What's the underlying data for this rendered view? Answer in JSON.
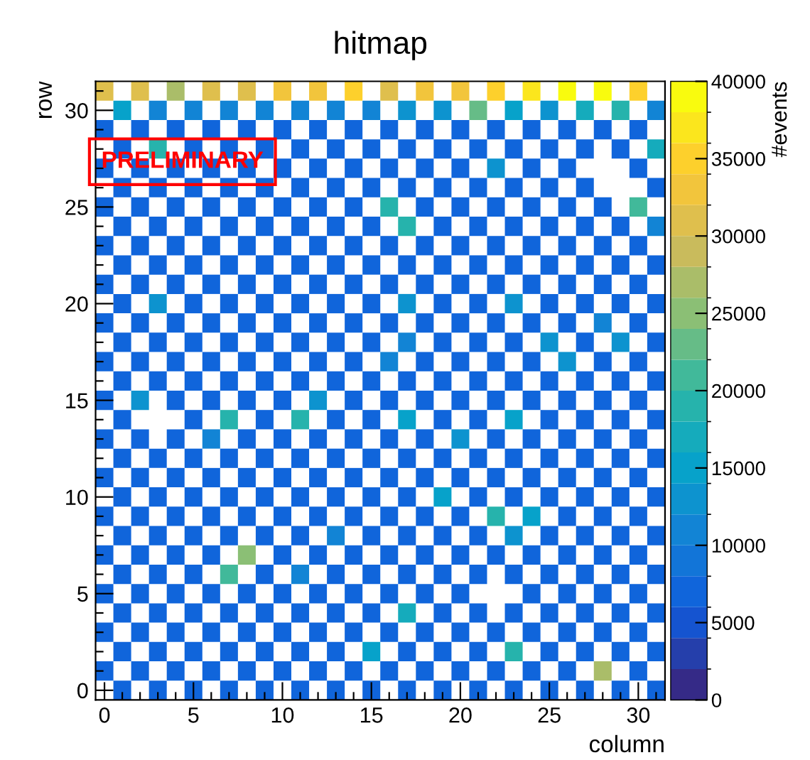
{
  "chart_data": {
    "type": "heatmap",
    "title": "hitmap",
    "xlabel": "column",
    "ylabel": "row",
    "clabel": "#events",
    "annotations": [
      "PRELIMINARY"
    ],
    "categories": [
      "0",
      null,
      null,
      null,
      null,
      "5",
      null,
      null,
      null,
      null,
      "10",
      null,
      null,
      null,
      null,
      "15",
      null,
      null,
      null,
      null,
      "20",
      null,
      null,
      null,
      null,
      "25",
      null,
      null,
      null,
      null,
      "30",
      null
    ],
    "y_categories": [
      null,
      "30",
      null,
      null,
      null,
      null,
      "25",
      null,
      null,
      null,
      null,
      "20",
      null,
      null,
      null,
      null,
      "15",
      null,
      null,
      null,
      null,
      "10",
      null,
      null,
      null,
      null,
      "5",
      null,
      null,
      null,
      null,
      "0"
    ],
    "clim": [
      0,
      40000
    ],
    "cticks": [
      0,
      5000,
      10000,
      15000,
      20000,
      25000,
      30000,
      35000,
      40000
    ],
    "cells": [
      [
        31000,
        null,
        31000,
        null,
        27000,
        null,
        31000,
        null,
        31000,
        null,
        33000,
        null,
        33000,
        null,
        35000,
        null,
        31000,
        null,
        33000,
        null,
        33000,
        null,
        35000,
        null,
        37000,
        null,
        39000,
        null,
        39000,
        null,
        35000,
        null
      ],
      [
        null,
        15000,
        null,
        11000,
        null,
        11000,
        null,
        11000,
        null,
        11000,
        null,
        11000,
        null,
        11000,
        null,
        11000,
        null,
        13000,
        null,
        13000,
        null,
        23000,
        null,
        15000,
        null,
        13000,
        null,
        17000,
        null,
        19000,
        null,
        11000
      ],
      [
        7000,
        null,
        7000,
        null,
        7000,
        null,
        7000,
        null,
        7000,
        null,
        7000,
        null,
        7000,
        null,
        7000,
        null,
        7000,
        null,
        7000,
        null,
        7000,
        null,
        7000,
        null,
        7000,
        null,
        7000,
        null,
        7000,
        null,
        7000,
        null
      ],
      [
        null,
        7000,
        null,
        19000,
        null,
        7000,
        null,
        7000,
        null,
        7000,
        null,
        7000,
        null,
        7000,
        null,
        7000,
        null,
        7000,
        null,
        7000,
        null,
        7000,
        null,
        7000,
        null,
        7000,
        null,
        7000,
        null,
        7000,
        null,
        17000
      ],
      [
        7000,
        null,
        7000,
        null,
        7000,
        null,
        7000,
        null,
        7000,
        null,
        7000,
        null,
        7000,
        null,
        7000,
        null,
        7000,
        null,
        7000,
        null,
        7000,
        null,
        13000,
        null,
        7000,
        null,
        7000,
        null,
        null,
        null,
        7000,
        null
      ],
      [
        null,
        7000,
        null,
        7000,
        null,
        7000,
        null,
        7000,
        null,
        7000,
        null,
        7000,
        null,
        7000,
        null,
        7000,
        null,
        7000,
        null,
        7000,
        null,
        7000,
        null,
        7000,
        null,
        7000,
        null,
        7000,
        null,
        null,
        null,
        7000
      ],
      [
        7000,
        null,
        7000,
        null,
        7000,
        null,
        7000,
        null,
        7000,
        null,
        7000,
        null,
        7000,
        null,
        7000,
        null,
        19000,
        null,
        7000,
        null,
        7000,
        null,
        7000,
        null,
        7000,
        null,
        7000,
        null,
        7000,
        null,
        21000,
        null
      ],
      [
        null,
        7000,
        null,
        7000,
        null,
        7000,
        null,
        7000,
        null,
        7000,
        null,
        7000,
        null,
        7000,
        null,
        7000,
        null,
        19000,
        null,
        7000,
        null,
        7000,
        null,
        7000,
        null,
        7000,
        null,
        7000,
        null,
        7000,
        null,
        11000
      ],
      [
        7000,
        null,
        7000,
        null,
        7000,
        null,
        7000,
        null,
        7000,
        null,
        7000,
        null,
        7000,
        null,
        7000,
        null,
        7000,
        null,
        7000,
        null,
        7000,
        null,
        7000,
        null,
        7000,
        null,
        7000,
        null,
        7000,
        null,
        7000,
        null
      ],
      [
        null,
        7000,
        null,
        7000,
        null,
        7000,
        null,
        7000,
        null,
        7000,
        null,
        7000,
        null,
        7000,
        null,
        7000,
        null,
        7000,
        null,
        7000,
        null,
        7000,
        null,
        7000,
        null,
        7000,
        null,
        7000,
        null,
        7000,
        null,
        7000
      ],
      [
        7000,
        null,
        7000,
        null,
        7000,
        null,
        7000,
        null,
        7000,
        null,
        7000,
        null,
        7000,
        null,
        7000,
        null,
        7000,
        null,
        7000,
        null,
        7000,
        null,
        7000,
        null,
        7000,
        null,
        7000,
        null,
        7000,
        null,
        7000,
        null
      ],
      [
        null,
        7000,
        null,
        13000,
        null,
        7000,
        null,
        7000,
        null,
        7000,
        null,
        7000,
        null,
        7000,
        null,
        7000,
        null,
        13000,
        null,
        7000,
        null,
        7000,
        null,
        13000,
        null,
        7000,
        null,
        7000,
        null,
        7000,
        null,
        7000
      ],
      [
        7000,
        null,
        7000,
        null,
        7000,
        null,
        7000,
        null,
        7000,
        null,
        7000,
        null,
        7000,
        null,
        7000,
        null,
        7000,
        null,
        7000,
        null,
        7000,
        null,
        7000,
        null,
        7000,
        null,
        7000,
        null,
        11000,
        null,
        7000,
        null
      ],
      [
        null,
        7000,
        null,
        7000,
        null,
        7000,
        null,
        7000,
        null,
        7000,
        null,
        7000,
        null,
        7000,
        null,
        7000,
        null,
        11000,
        null,
        7000,
        null,
        7000,
        null,
        7000,
        null,
        13000,
        null,
        7000,
        null,
        13000,
        null,
        7000
      ],
      [
        7000,
        null,
        7000,
        null,
        7000,
        null,
        7000,
        null,
        7000,
        null,
        7000,
        null,
        7000,
        null,
        7000,
        null,
        11000,
        null,
        7000,
        null,
        7000,
        null,
        7000,
        null,
        7000,
        null,
        13000,
        null,
        7000,
        null,
        7000,
        null
      ],
      [
        null,
        7000,
        null,
        7000,
        null,
        7000,
        null,
        7000,
        null,
        7000,
        null,
        7000,
        null,
        7000,
        null,
        7000,
        null,
        7000,
        null,
        7000,
        null,
        7000,
        null,
        7000,
        null,
        7000,
        null,
        7000,
        null,
        7000,
        null,
        7000
      ],
      [
        7000,
        null,
        13000,
        null,
        7000,
        null,
        7000,
        null,
        7000,
        null,
        7000,
        null,
        13000,
        null,
        7000,
        null,
        7000,
        null,
        7000,
        null,
        7000,
        null,
        7000,
        null,
        7000,
        null,
        7000,
        null,
        7000,
        null,
        7000,
        null
      ],
      [
        null,
        7000,
        null,
        null,
        null,
        7000,
        null,
        19000,
        null,
        7000,
        null,
        19000,
        null,
        7000,
        null,
        7000,
        null,
        15000,
        null,
        7000,
        null,
        7000,
        null,
        15000,
        null,
        7000,
        null,
        7000,
        null,
        7000,
        null,
        7000
      ],
      [
        7000,
        null,
        7000,
        null,
        7000,
        null,
        11000,
        null,
        7000,
        null,
        7000,
        null,
        7000,
        null,
        7000,
        null,
        7000,
        null,
        7000,
        null,
        13000,
        null,
        7000,
        null,
        7000,
        null,
        7000,
        null,
        7000,
        null,
        7000,
        null
      ],
      [
        null,
        7000,
        null,
        7000,
        null,
        7000,
        null,
        7000,
        null,
        7000,
        null,
        7000,
        null,
        7000,
        null,
        7000,
        null,
        7000,
        null,
        7000,
        null,
        7000,
        null,
        7000,
        null,
        7000,
        null,
        7000,
        null,
        7000,
        null,
        7000
      ],
      [
        7000,
        null,
        7000,
        null,
        7000,
        null,
        7000,
        null,
        7000,
        null,
        7000,
        null,
        7000,
        null,
        7000,
        null,
        7000,
        null,
        7000,
        null,
        7000,
        null,
        7000,
        null,
        7000,
        null,
        7000,
        null,
        7000,
        null,
        7000,
        null
      ],
      [
        null,
        7000,
        null,
        7000,
        null,
        7000,
        null,
        7000,
        null,
        7000,
        null,
        7000,
        null,
        7000,
        null,
        7000,
        null,
        7000,
        null,
        15000,
        null,
        7000,
        null,
        7000,
        null,
        7000,
        null,
        7000,
        null,
        7000,
        null,
        7000
      ],
      [
        7000,
        null,
        7000,
        null,
        7000,
        null,
        7000,
        null,
        7000,
        null,
        7000,
        null,
        7000,
        null,
        7000,
        null,
        7000,
        null,
        7000,
        null,
        7000,
        null,
        19000,
        null,
        15000,
        null,
        7000,
        null,
        7000,
        null,
        7000,
        null
      ],
      [
        null,
        7000,
        null,
        7000,
        null,
        7000,
        null,
        7000,
        null,
        7000,
        null,
        7000,
        null,
        11000,
        null,
        7000,
        null,
        7000,
        null,
        7000,
        null,
        7000,
        null,
        13000,
        null,
        7000,
        null,
        7000,
        null,
        7000,
        null,
        7000
      ],
      [
        7000,
        null,
        7000,
        null,
        7000,
        null,
        7000,
        null,
        25000,
        null,
        7000,
        null,
        7000,
        null,
        7000,
        null,
        7000,
        null,
        7000,
        null,
        7000,
        null,
        7000,
        null,
        7000,
        null,
        7000,
        null,
        7000,
        null,
        7000,
        null
      ],
      [
        null,
        7000,
        null,
        7000,
        null,
        7000,
        null,
        21000,
        null,
        7000,
        null,
        11000,
        null,
        7000,
        null,
        7000,
        null,
        7000,
        null,
        7000,
        null,
        7000,
        null,
        7000,
        null,
        7000,
        null,
        7000,
        null,
        7000,
        null,
        7000
      ],
      [
        7000,
        null,
        7000,
        null,
        7000,
        null,
        7000,
        null,
        7000,
        null,
        7000,
        null,
        7000,
        null,
        7000,
        null,
        7000,
        null,
        7000,
        null,
        7000,
        null,
        null,
        null,
        7000,
        null,
        7000,
        null,
        7000,
        null,
        7000,
        null
      ],
      [
        null,
        7000,
        null,
        7000,
        null,
        7000,
        null,
        7000,
        null,
        7000,
        null,
        7000,
        null,
        7000,
        null,
        7000,
        null,
        17000,
        null,
        7000,
        null,
        7000,
        null,
        7000,
        null,
        7000,
        null,
        7000,
        null,
        7000,
        null,
        7000
      ],
      [
        7000,
        null,
        7000,
        null,
        7000,
        null,
        7000,
        null,
        7000,
        null,
        7000,
        null,
        7000,
        null,
        7000,
        null,
        7000,
        null,
        7000,
        null,
        7000,
        null,
        7000,
        null,
        7000,
        null,
        7000,
        null,
        7000,
        null,
        7000,
        null
      ],
      [
        null,
        7000,
        null,
        7000,
        null,
        7000,
        null,
        7000,
        null,
        7000,
        null,
        7000,
        null,
        7000,
        null,
        15000,
        null,
        7000,
        null,
        7000,
        null,
        7000,
        null,
        19000,
        null,
        7000,
        null,
        7000,
        null,
        7000,
        null,
        7000
      ],
      [
        7000,
        null,
        7000,
        null,
        7000,
        null,
        7000,
        null,
        7000,
        null,
        7000,
        null,
        7000,
        null,
        7000,
        null,
        7000,
        null,
        7000,
        null,
        7000,
        null,
        7000,
        null,
        7000,
        null,
        7000,
        null,
        27000,
        null,
        7000,
        null
      ],
      [
        null,
        7000,
        null,
        7000,
        null,
        7000,
        null,
        7000,
        null,
        7000,
        null,
        7000,
        null,
        7000,
        null,
        7000,
        null,
        7000,
        null,
        7000,
        null,
        7000,
        null,
        7000,
        null,
        7000,
        null,
        7000,
        null,
        7000,
        null,
        7000
      ]
    ]
  }
}
